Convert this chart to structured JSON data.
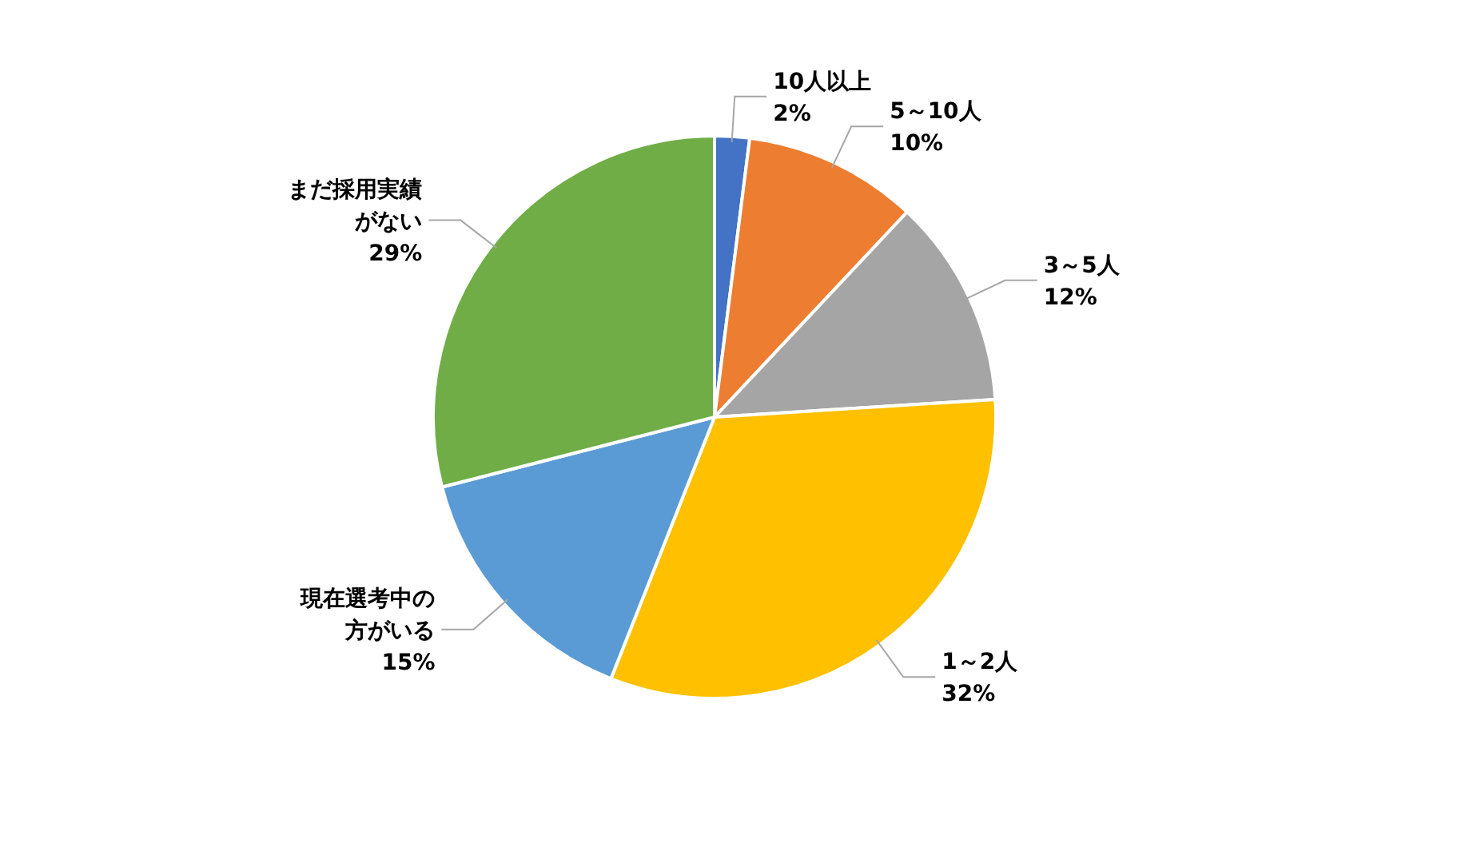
{
  "chart_data": {
    "type": "pie",
    "categories": [
      "10人以上",
      "5～10人",
      "3～5人",
      "1～2人",
      "現在選考中の方がいる",
      "まだ採用実績がない"
    ],
    "values": [
      2,
      10,
      12,
      32,
      15,
      29
    ],
    "value_labels": [
      "2%",
      "10%",
      "12%",
      "32%",
      "15%",
      "29%"
    ],
    "colors": [
      "#4472c4",
      "#ed7d31",
      "#a5a5a5",
      "#ffc000",
      "#5b9bd5",
      "#70ad47"
    ]
  }
}
